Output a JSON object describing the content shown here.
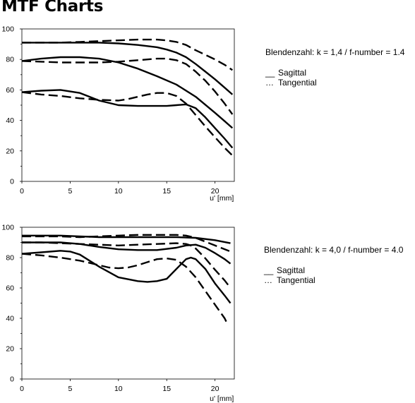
{
  "page": {
    "title": "MTF Charts"
  },
  "legend_symbols": {
    "sagittal": "__",
    "tangential": "…"
  },
  "chart_data": [
    {
      "type": "line",
      "title": "",
      "fnumber_label": "Blendenzahl: k = 1,4 / f-number = 1.4",
      "xlabel": "u' [mm]",
      "ylabel": "",
      "xlim": [
        0,
        22
      ],
      "ylim": [
        0,
        100
      ],
      "xticks": [
        0,
        5,
        10,
        15,
        20
      ],
      "yticks": [
        0,
        20,
        40,
        60,
        80,
        100
      ],
      "grid": false,
      "legend": [
        {
          "name": "Sagittal",
          "style": "solid"
        },
        {
          "name": "Tangential",
          "style": "dashed"
        }
      ],
      "series": [
        {
          "name": "Sagittal",
          "style": "solid",
          "x": [
            0,
            2,
            4,
            6,
            8,
            10,
            12,
            14,
            15,
            16,
            17,
            18,
            19,
            20,
            21,
            21.8
          ],
          "y": [
            91,
            91,
            91,
            91,
            91,
            90.5,
            89.5,
            88,
            86.5,
            84.5,
            81.5,
            77,
            72,
            67,
            61.5,
            57
          ]
        },
        {
          "name": "Tangential",
          "style": "dashed",
          "x": [
            0,
            2,
            4,
            6,
            8,
            10,
            12,
            13,
            14,
            15,
            16,
            17,
            18,
            19,
            20,
            21,
            21.8
          ],
          "y": [
            91,
            91,
            91,
            91.5,
            92,
            92.5,
            93,
            93,
            93,
            92.5,
            91.5,
            89.5,
            86,
            83,
            80,
            76.5,
            73
          ]
        },
        {
          "name": "Sagittal",
          "style": "solid",
          "x": [
            0,
            2,
            4,
            5,
            6,
            8,
            10,
            12,
            14,
            16,
            18,
            20,
            21,
            21.8
          ],
          "y": [
            79,
            80.5,
            81.5,
            81.5,
            81.5,
            80.5,
            78,
            74,
            69,
            63.5,
            55.5,
            45,
            39.5,
            35
          ]
        },
        {
          "name": "Tangential",
          "style": "dashed",
          "x": [
            0,
            2,
            4,
            6,
            8,
            10,
            12,
            14,
            15,
            16,
            17,
            18,
            19,
            20,
            21,
            21.8
          ],
          "y": [
            79,
            78.5,
            78,
            78,
            78,
            78.5,
            79.5,
            80.5,
            80.5,
            79.5,
            77,
            72,
            66,
            59,
            51,
            44
          ]
        },
        {
          "name": "Sagittal",
          "style": "solid",
          "x": [
            0,
            2,
            4,
            6,
            8,
            10,
            12,
            14,
            15,
            16,
            17,
            18,
            19,
            20,
            21,
            21.8
          ],
          "y": [
            58.5,
            59.5,
            60,
            58,
            53,
            50,
            49.5,
            49.5,
            49.5,
            50,
            50.5,
            48,
            42,
            35,
            28,
            22
          ]
        },
        {
          "name": "Tangential",
          "style": "dashed",
          "x": [
            0,
            2,
            4,
            6,
            8,
            10,
            11,
            12,
            13,
            14,
            15,
            16,
            17,
            18,
            19,
            20,
            21,
            21.8
          ],
          "y": [
            58.5,
            57,
            56,
            54.5,
            53.5,
            53,
            54,
            55.5,
            57,
            58,
            58,
            56,
            51,
            43.5,
            36,
            29,
            22,
            17
          ]
        }
      ]
    },
    {
      "type": "line",
      "title": "",
      "fnumber_label": "Blendenzahl: k = 4,0 / f-number = 4.0",
      "xlabel": "u' [mm]",
      "ylabel": "",
      "xlim": [
        0,
        22
      ],
      "ylim": [
        0,
        100
      ],
      "xticks": [
        0,
        5,
        10,
        15,
        20
      ],
      "yticks": [
        0,
        20,
        40,
        60,
        80,
        100
      ],
      "grid": false,
      "legend": [
        {
          "name": "Sagittal",
          "style": "solid"
        },
        {
          "name": "Tangential",
          "style": "dashed"
        }
      ],
      "series": [
        {
          "name": "Sagittal",
          "style": "solid",
          "x": [
            0,
            2,
            4,
            6,
            8,
            10,
            12,
            14,
            16,
            18,
            20,
            21.6
          ],
          "y": [
            94.5,
            94.5,
            94.5,
            94,
            93.5,
            93.5,
            93.5,
            93.5,
            93.5,
            93,
            91.5,
            89.5
          ]
        },
        {
          "name": "Tangential",
          "style": "dashed",
          "x": [
            0,
            2,
            4,
            6,
            8,
            10,
            12,
            14,
            16,
            17,
            18,
            19,
            20,
            21.6
          ],
          "y": [
            94,
            94,
            94,
            93.5,
            94,
            94.5,
            95,
            95,
            95,
            94.5,
            93,
            90.5,
            88,
            84
          ]
        },
        {
          "name": "Sagittal",
          "style": "solid",
          "x": [
            0,
            2,
            4,
            6,
            8,
            10,
            12,
            14,
            16,
            17,
            18,
            19,
            20,
            21,
            21.6
          ],
          "y": [
            90,
            90,
            90,
            89,
            87,
            85.5,
            85,
            85,
            86.5,
            88,
            88.5,
            86.5,
            83,
            79,
            76
          ]
        },
        {
          "name": "Tangential",
          "style": "dashed",
          "x": [
            0,
            2,
            4,
            6,
            8,
            10,
            12,
            14,
            16,
            17,
            17.5,
            18,
            19,
            20,
            21,
            21.6
          ],
          "y": [
            90,
            90,
            89.5,
            89,
            88.5,
            88,
            88.5,
            89,
            89.5,
            89,
            88,
            86,
            79.5,
            72,
            65,
            60
          ]
        },
        {
          "name": "Sagittal",
          "style": "solid",
          "x": [
            0,
            2,
            4,
            5,
            6,
            8,
            10,
            12,
            13,
            14,
            15,
            16,
            17,
            17.5,
            18,
            19,
            20,
            21,
            21.6
          ],
          "y": [
            82.5,
            83.5,
            84.5,
            84,
            82,
            74,
            67,
            64.5,
            64,
            64.5,
            66,
            72.5,
            79,
            80,
            79,
            72.5,
            63,
            55,
            50
          ]
        },
        {
          "name": "Tangential",
          "style": "dashed",
          "x": [
            0,
            2,
            4,
            6,
            7,
            8,
            9,
            10,
            11,
            12,
            13,
            14,
            15,
            16,
            17,
            18,
            19,
            20,
            21,
            21.3
          ],
          "y": [
            82.5,
            81.5,
            80,
            78,
            76.5,
            75,
            73.5,
            73,
            73.5,
            75,
            77,
            79,
            79.5,
            78.5,
            74,
            67,
            58,
            49,
            40,
            36
          ]
        }
      ]
    }
  ]
}
